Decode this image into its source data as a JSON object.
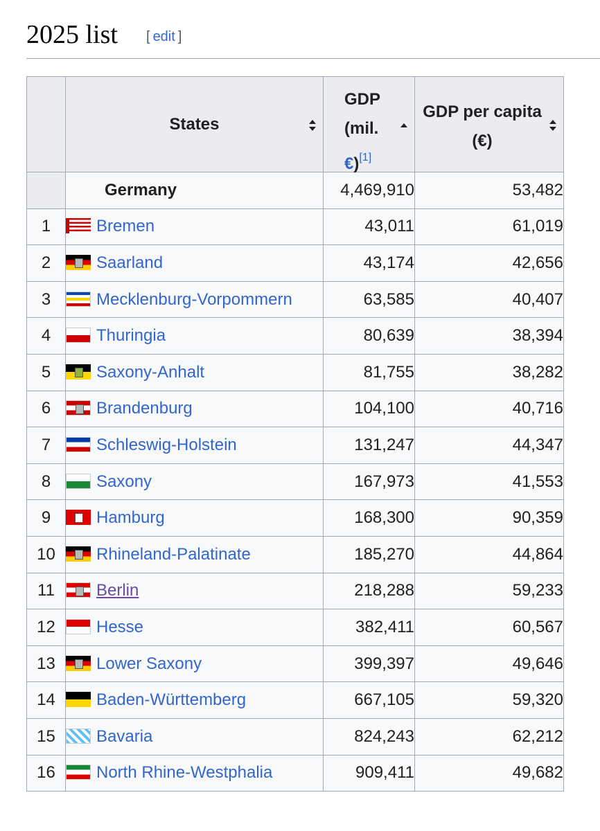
{
  "section": {
    "title": "2025 list",
    "edit_label": "edit",
    "bracket_open": "[",
    "bracket_close": "]"
  },
  "table": {
    "headers": {
      "states": "States",
      "gdp_line1": "GDP",
      "gdp_line2": "(mil.",
      "gdp_unit": "€",
      "gdp_close": ")",
      "gdp_ref": "[1]",
      "per_capita_line1": "GDP per capita",
      "per_capita_line2": "(€)"
    },
    "total": {
      "state": "Germany",
      "gdp": "4,469,910",
      "per_capita": "53,482"
    },
    "rows": [
      {
        "rank": "1",
        "state": "Bremen",
        "gdp": "43,011",
        "per_capita": "61,019",
        "flag": [
          "#cc0000",
          "#ffffff"
        ],
        "flag_type": "stripes"
      },
      {
        "rank": "2",
        "state": "Saarland",
        "gdp": "43,174",
        "per_capita": "42,656",
        "flag": [
          "#000000",
          "#dd0000",
          "#ffce00"
        ],
        "flag_type": "tricolor-emblem"
      },
      {
        "rank": "3",
        "state": "Mecklenburg-Vorpommern",
        "gdp": "63,585",
        "per_capita": "40,407",
        "flag": [
          "#0a4ea2",
          "#ffffff",
          "#ffd700",
          "#ffffff",
          "#cc0000"
        ],
        "flag_type": "bands"
      },
      {
        "rank": "4",
        "state": "Thuringia",
        "gdp": "80,639",
        "per_capita": "38,394",
        "flag": [
          "#ffffff",
          "#cc0000"
        ],
        "flag_type": "bands"
      },
      {
        "rank": "5",
        "state": "Saxony-Anhalt",
        "gdp": "81,755",
        "per_capita": "38,282",
        "flag": [
          "#000000",
          "#ffd700"
        ],
        "flag_type": "bicolor-emblem"
      },
      {
        "rank": "6",
        "state": "Brandenburg",
        "gdp": "104,100",
        "per_capita": "40,716",
        "flag": [
          "#cc0000",
          "#ffffff",
          "#cc0000"
        ],
        "flag_type": "bands-emblem"
      },
      {
        "rank": "7",
        "state": "Schleswig-Holstein",
        "gdp": "131,247",
        "per_capita": "44,347",
        "flag": [
          "#003da5",
          "#ffffff",
          "#cc0000"
        ],
        "flag_type": "bands"
      },
      {
        "rank": "8",
        "state": "Saxony",
        "gdp": "167,973",
        "per_capita": "41,553",
        "flag": [
          "#ffffff",
          "#1a8a3a"
        ],
        "flag_type": "bands"
      },
      {
        "rank": "9",
        "state": "Hamburg",
        "gdp": "168,300",
        "per_capita": "90,359",
        "flag": [
          "#dd0000"
        ],
        "flag_type": "solid-emblem"
      },
      {
        "rank": "10",
        "state": "Rhineland-Palatinate",
        "gdp": "185,270",
        "per_capita": "44,864",
        "flag": [
          "#000000",
          "#dd0000",
          "#ffce00"
        ],
        "flag_type": "tricolor-emblem"
      },
      {
        "rank": "11",
        "state": "Berlin",
        "gdp": "218,288",
        "per_capita": "59,233",
        "flag": [
          "#dd0000",
          "#ffffff",
          "#dd0000"
        ],
        "flag_type": "bands-emblem",
        "visited": true
      },
      {
        "rank": "12",
        "state": "Hesse",
        "gdp": "382,411",
        "per_capita": "60,567",
        "flag": [
          "#dd0000",
          "#ffffff"
        ],
        "flag_type": "bands"
      },
      {
        "rank": "13",
        "state": "Lower Saxony",
        "gdp": "399,397",
        "per_capita": "49,646",
        "flag": [
          "#000000",
          "#dd0000",
          "#ffce00"
        ],
        "flag_type": "tricolor-emblem"
      },
      {
        "rank": "14",
        "state": "Baden-Württemberg",
        "gdp": "667,105",
        "per_capita": "59,320",
        "flag": [
          "#000000",
          "#ffd700"
        ],
        "flag_type": "bands"
      },
      {
        "rank": "15",
        "state": "Bavaria",
        "gdp": "824,243",
        "per_capita": "62,212",
        "flag": [
          "#5ec1f0",
          "#ffffff"
        ],
        "flag_type": "lozenges"
      },
      {
        "rank": "16",
        "state": "North Rhine-Westphalia",
        "gdp": "909,411",
        "per_capita": "49,682",
        "flag": [
          "#138a36",
          "#ffffff",
          "#dd0000"
        ],
        "flag_type": "bands"
      }
    ]
  }
}
